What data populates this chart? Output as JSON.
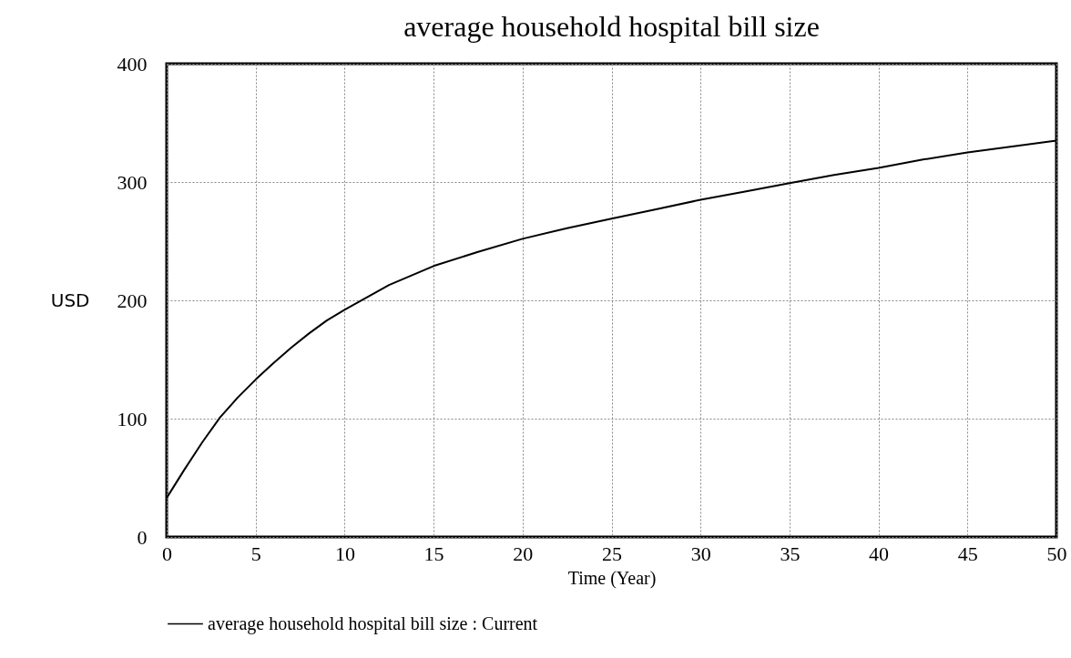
{
  "chart_data": {
    "type": "line",
    "title": "average household hospital bill size",
    "xlabel": "Time (Year)",
    "ylabel": "USD",
    "x": [
      0,
      1,
      2,
      3,
      4,
      5,
      6,
      7,
      8,
      9,
      10,
      12.5,
      15,
      17.5,
      20,
      22.5,
      25,
      27.5,
      30,
      32.5,
      35,
      37.5,
      40,
      42.5,
      45,
      47.5,
      50
    ],
    "series": [
      {
        "name": "average household hospital bill size : Current",
        "color": "#000000",
        "values": [
          33,
          57,
          80,
          101,
          118,
          133,
          147,
          160,
          172,
          183,
          192,
          213,
          229,
          241,
          252,
          261,
          269,
          277,
          285,
          292,
          299,
          306,
          312,
          319,
          325,
          330,
          335
        ]
      }
    ],
    "xlim": [
      0,
      50
    ],
    "xticks": [
      0,
      5,
      10,
      15,
      20,
      25,
      30,
      35,
      40,
      45,
      50
    ],
    "ylim": [
      0,
      400
    ],
    "yticks": [
      0,
      100,
      200,
      300,
      400
    ],
    "grid": true,
    "legend": "bottom"
  }
}
